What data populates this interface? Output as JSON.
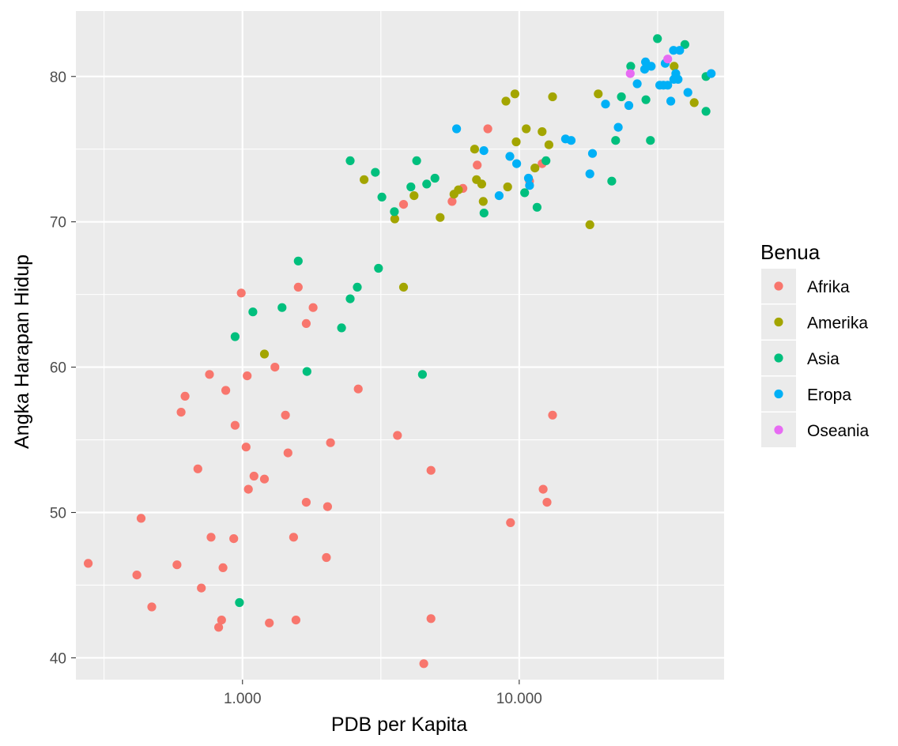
{
  "chart_data": {
    "type": "scatter",
    "title": "",
    "xlabel": "PDB per Kapita",
    "ylabel": "Angka Harapan Hidup",
    "x_scale": "log10",
    "xlim": [
      250,
      55000
    ],
    "ylim": [
      38.5,
      84.5
    ],
    "x_ticks": [
      {
        "value": 1000,
        "label": "1.000"
      },
      {
        "value": 10000,
        "label": "10.000"
      }
    ],
    "x_minor_gridlines": [
      316,
      3162,
      31623
    ],
    "y_ticks": [
      {
        "value": 40,
        "label": "40"
      },
      {
        "value": 50,
        "label": "50"
      },
      {
        "value": 60,
        "label": "60"
      },
      {
        "value": 70,
        "label": "70"
      },
      {
        "value": 80,
        "label": "80"
      }
    ],
    "y_minor_gridlines": [
      45,
      55,
      65,
      75
    ],
    "grid": true,
    "legend": {
      "title": "Benua",
      "position": "right"
    },
    "colors": {
      "panel": "#ebebeb",
      "grid": "#ffffff",
      "Afrika": "#f8766d",
      "Amerika": "#a3a500",
      "Asia": "#00bf7d",
      "Eropa": "#00b0f6",
      "Oseania": "#e76bf3"
    },
    "series": [
      {
        "name": "Afrika",
        "points": [
          [
            277,
            46.5
          ],
          [
            415,
            45.7
          ],
          [
            430,
            49.6
          ],
          [
            470,
            43.5
          ],
          [
            580,
            46.4
          ],
          [
            600,
            56.9
          ],
          [
            620,
            58.0
          ],
          [
            690,
            53.0
          ],
          [
            710,
            44.8
          ],
          [
            760,
            59.5
          ],
          [
            770,
            48.3
          ],
          [
            820,
            42.1
          ],
          [
            840,
            42.6
          ],
          [
            850,
            46.2
          ],
          [
            870,
            58.4
          ],
          [
            930,
            48.2
          ],
          [
            940,
            56.0
          ],
          [
            990,
            65.1
          ],
          [
            1030,
            54.5
          ],
          [
            1040,
            59.4
          ],
          [
            1050,
            51.6
          ],
          [
            1100,
            52.5
          ],
          [
            1200,
            52.3
          ],
          [
            1250,
            42.4
          ],
          [
            1310,
            60.0
          ],
          [
            1430,
            56.7
          ],
          [
            1460,
            54.1
          ],
          [
            1530,
            48.3
          ],
          [
            1560,
            42.6
          ],
          [
            1590,
            65.5
          ],
          [
            1700,
            63.0
          ],
          [
            1700,
            50.7
          ],
          [
            1800,
            64.1
          ],
          [
            2010,
            46.9
          ],
          [
            2030,
            50.4
          ],
          [
            2080,
            54.8
          ],
          [
            2620,
            58.5
          ],
          [
            3630,
            55.3
          ],
          [
            3820,
            71.2
          ],
          [
            4520,
            39.6
          ],
          [
            4800,
            52.9
          ],
          [
            4800,
            42.7
          ],
          [
            5720,
            71.4
          ],
          [
            6260,
            72.3
          ],
          [
            7050,
            73.9
          ],
          [
            7700,
            76.4
          ],
          [
            9300,
            49.3
          ],
          [
            10900,
            72.8
          ],
          [
            12100,
            74.0
          ],
          [
            12200,
            51.6
          ],
          [
            12600,
            50.7
          ],
          [
            13200,
            56.7
          ]
        ]
      },
      {
        "name": "Amerika",
        "points": [
          [
            1200,
            60.9
          ],
          [
            2750,
            72.9
          ],
          [
            3550,
            70.2
          ],
          [
            3820,
            65.5
          ],
          [
            4170,
            71.8
          ],
          [
            5180,
            70.3
          ],
          [
            5810,
            71.9
          ],
          [
            6030,
            72.2
          ],
          [
            6900,
            75.0
          ],
          [
            7010,
            72.9
          ],
          [
            7320,
            72.6
          ],
          [
            7410,
            71.4
          ],
          [
            8950,
            78.3
          ],
          [
            9080,
            72.4
          ],
          [
            9650,
            78.8
          ],
          [
            9750,
            75.5
          ],
          [
            10600,
            76.4
          ],
          [
            11400,
            73.7
          ],
          [
            12100,
            76.2
          ],
          [
            12800,
            75.3
          ],
          [
            13200,
            78.6
          ],
          [
            18000,
            69.8
          ],
          [
            19300,
            78.8
          ],
          [
            36300,
            80.7
          ],
          [
            42900,
            78.2
          ]
        ]
      },
      {
        "name": "Asia",
        "points": [
          [
            940,
            62.1
          ],
          [
            975,
            43.8
          ],
          [
            1090,
            63.8
          ],
          [
            1390,
            64.1
          ],
          [
            1590,
            67.3
          ],
          [
            1710,
            59.7
          ],
          [
            2280,
            62.7
          ],
          [
            2450,
            64.7
          ],
          [
            2450,
            74.2
          ],
          [
            2600,
            65.5
          ],
          [
            3020,
            73.4
          ],
          [
            3100,
            66.8
          ],
          [
            3190,
            71.7
          ],
          [
            3540,
            70.7
          ],
          [
            4060,
            72.4
          ],
          [
            4260,
            74.2
          ],
          [
            4470,
            59.5
          ],
          [
            4630,
            72.6
          ],
          [
            4960,
            73.0
          ],
          [
            7460,
            70.6
          ],
          [
            10460,
            72.0
          ],
          [
            11600,
            71.0
          ],
          [
            12500,
            74.2
          ],
          [
            21600,
            72.8
          ],
          [
            22300,
            75.6
          ],
          [
            23400,
            78.6
          ],
          [
            25300,
            80.7
          ],
          [
            28700,
            78.4
          ],
          [
            29800,
            75.6
          ],
          [
            31600,
            82.6
          ],
          [
            39700,
            82.2
          ],
          [
            47300,
            80.0
          ],
          [
            47300,
            77.6
          ]
        ]
      },
      {
        "name": "Eropa",
        "points": [
          [
            5940,
            76.4
          ],
          [
            7450,
            74.9
          ],
          [
            8460,
            71.8
          ],
          [
            9250,
            74.5
          ],
          [
            9790,
            74.0
          ],
          [
            10800,
            73.0
          ],
          [
            10900,
            72.5
          ],
          [
            14700,
            75.7
          ],
          [
            15400,
            75.6
          ],
          [
            18000,
            73.3
          ],
          [
            18400,
            74.7
          ],
          [
            20500,
            78.1
          ],
          [
            22800,
            76.5
          ],
          [
            24900,
            78.0
          ],
          [
            26700,
            79.5
          ],
          [
            28400,
            80.5
          ],
          [
            28600,
            81.0
          ],
          [
            30000,
            80.7
          ],
          [
            32200,
            79.4
          ],
          [
            33200,
            79.4
          ],
          [
            33700,
            80.9
          ],
          [
            34400,
            79.4
          ],
          [
            35300,
            78.3
          ],
          [
            36100,
            81.8
          ],
          [
            36200,
            79.8
          ],
          [
            36800,
            80.2
          ],
          [
            37500,
            79.8
          ],
          [
            38000,
            81.8
          ],
          [
            40700,
            78.9
          ],
          [
            49400,
            80.2
          ]
        ]
      },
      {
        "name": "Oseania",
        "points": [
          [
            25200,
            80.2
          ],
          [
            34400,
            81.2
          ]
        ]
      }
    ]
  }
}
